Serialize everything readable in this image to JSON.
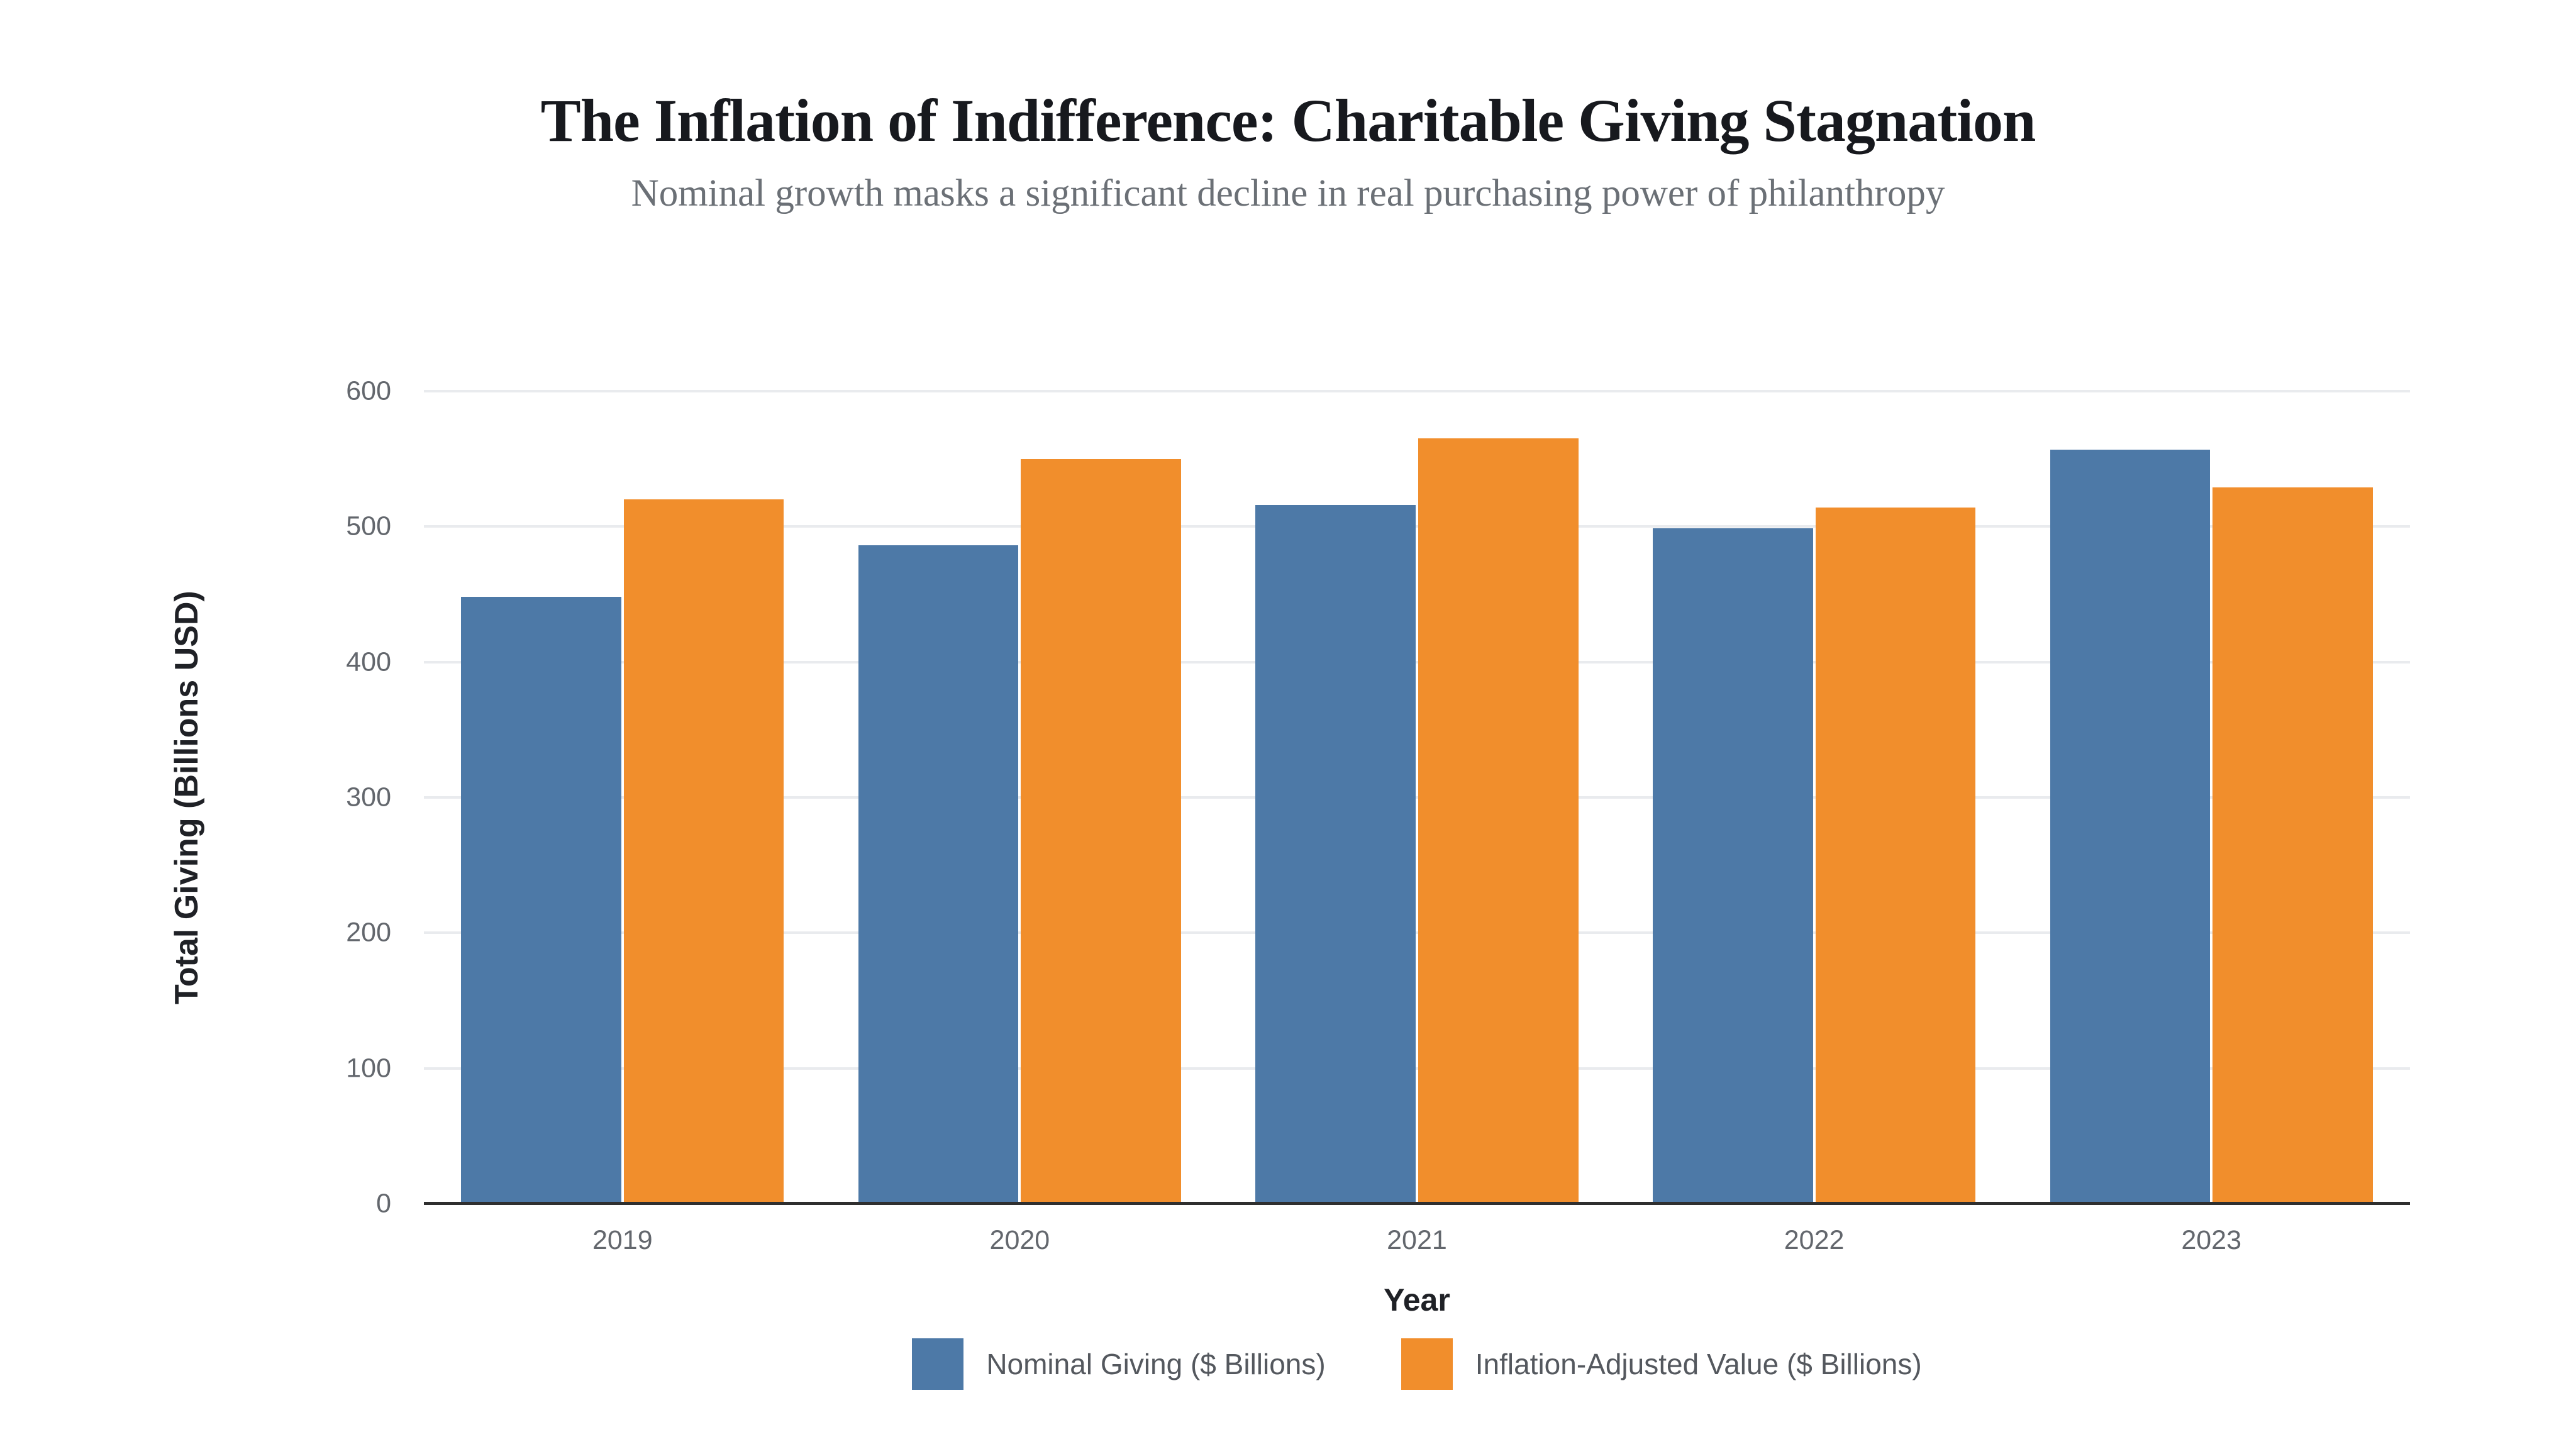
{
  "chart_data": {
    "type": "bar",
    "title": "The Inflation of Indifference: Charitable Giving Stagnation",
    "subtitle": "Nominal growth masks a significant decline in real purchasing power of philanthropy",
    "categories": [
      "2019",
      "2020",
      "2021",
      "2022",
      "2023"
    ],
    "series": [
      {
        "name": "Nominal Giving ($ Billions)",
        "key": "nominal-giving",
        "color": "#4d79a7",
        "values": [
          448,
          486,
          516,
          499,
          557
        ]
      },
      {
        "name": "Inflation-Adjusted Value ($ Billions)",
        "key": "inflation-adjusted-value",
        "color": "#f18e2c",
        "values": [
          520,
          550,
          565,
          514,
          529
        ]
      }
    ],
    "xlabel": "Year",
    "ylabel": "Total Giving (Billions USD)",
    "ylim": [
      0,
      600
    ],
    "yticks": [
      0,
      100,
      200,
      300,
      400,
      500,
      600
    ],
    "grid": true,
    "legend_position": "bottom"
  },
  "colors": {
    "background": "#ffffff",
    "title": "#17191e",
    "subtitle": "#6b7076",
    "tick_label": "#63676d",
    "axis_title": "#1f2126",
    "legend_text": "#54585e",
    "gridline": "#e9ebee",
    "axis_line": "#2f2f2f",
    "bar_blue": "#4d79a7",
    "bar_orange": "#f18e2c"
  }
}
